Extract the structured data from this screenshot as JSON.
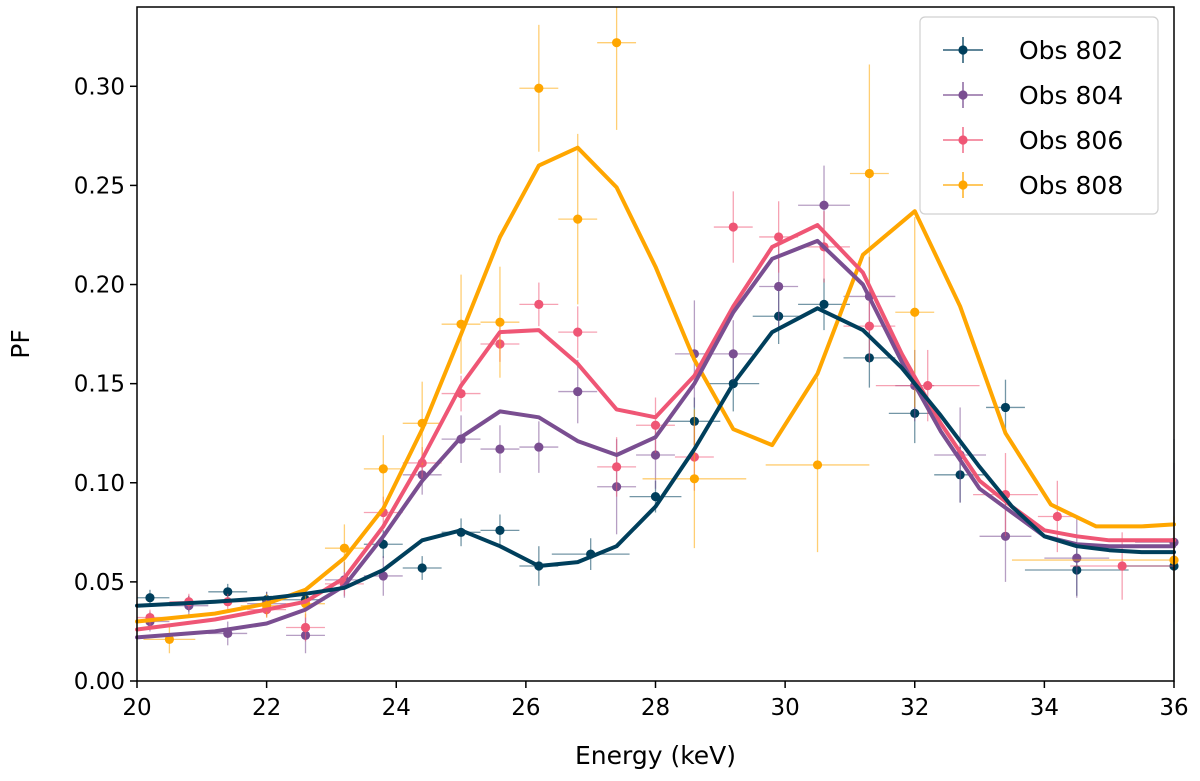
{
  "chart_data": {
    "type": "line",
    "title": "",
    "xlabel": "Energy (keV)",
    "ylabel": "PF",
    "xlim": [
      20,
      36
    ],
    "ylim": [
      0,
      0.34
    ],
    "xticks": [
      20,
      22,
      24,
      26,
      28,
      30,
      32,
      34,
      36
    ],
    "xtick_labels": [
      "20",
      "22",
      "24",
      "26",
      "28",
      "30",
      "32",
      "34",
      "36"
    ],
    "yticks": [
      0.0,
      0.05,
      0.1,
      0.15,
      0.2,
      0.25,
      0.3
    ],
    "ytick_labels": [
      "0.00",
      "0.05",
      "0.10",
      "0.15",
      "0.20",
      "0.25",
      "0.30"
    ],
    "grid": false,
    "legend_position": "top-right",
    "series": [
      {
        "name": "Obs 802",
        "color": "#003f5c",
        "model_x": [
          20,
          21.2,
          22.1,
          22.6,
          23.2,
          23.8,
          24.4,
          25.0,
          25.6,
          26.2,
          26.8,
          27.4,
          28.0,
          28.6,
          29.2,
          29.8,
          30.5,
          31.2,
          31.8,
          32.4,
          33.0,
          33.5,
          34.0,
          34.5,
          35.0,
          35.5,
          36
        ],
        "model_y": [
          0.038,
          0.04,
          0.042,
          0.044,
          0.047,
          0.056,
          0.071,
          0.076,
          0.068,
          0.058,
          0.06,
          0.068,
          0.088,
          0.117,
          0.15,
          0.176,
          0.188,
          0.177,
          0.158,
          0.134,
          0.108,
          0.088,
          0.073,
          0.068,
          0.066,
          0.065,
          0.065
        ],
        "points": [
          {
            "x": 20.2,
            "y": 0.042,
            "xerr": 0.3,
            "yerr": 0.004
          },
          {
            "x": 20.8,
            "y": 0.039,
            "xerr": 0.3,
            "yerr": 0.004
          },
          {
            "x": 21.4,
            "y": 0.045,
            "xerr": 0.3,
            "yerr": 0.004
          },
          {
            "x": 22.0,
            "y": 0.041,
            "xerr": 0.3,
            "yerr": 0.004
          },
          {
            "x": 22.6,
            "y": 0.041,
            "xerr": 0.3,
            "yerr": 0.005
          },
          {
            "x": 23.8,
            "y": 0.069,
            "xerr": 0.3,
            "yerr": 0.007
          },
          {
            "x": 24.4,
            "y": 0.057,
            "xerr": 0.3,
            "yerr": 0.006
          },
          {
            "x": 25.0,
            "y": 0.075,
            "xerr": 0.3,
            "yerr": 0.007
          },
          {
            "x": 25.6,
            "y": 0.076,
            "xerr": 0.3,
            "yerr": 0.008
          },
          {
            "x": 26.2,
            "y": 0.058,
            "xerr": 0.3,
            "yerr": 0.01
          },
          {
            "x": 27.0,
            "y": 0.064,
            "xerr": 0.6,
            "yerr": 0.008
          },
          {
            "x": 28.0,
            "y": 0.093,
            "xerr": 0.4,
            "yerr": 0.008
          },
          {
            "x": 28.6,
            "y": 0.131,
            "xerr": 0.4,
            "yerr": 0.012
          },
          {
            "x": 29.2,
            "y": 0.15,
            "xerr": 0.4,
            "yerr": 0.014
          },
          {
            "x": 29.9,
            "y": 0.184,
            "xerr": 0.4,
            "yerr": 0.014
          },
          {
            "x": 30.6,
            "y": 0.19,
            "xerr": 0.4,
            "yerr": 0.013
          },
          {
            "x": 31.3,
            "y": 0.163,
            "xerr": 0.4,
            "yerr": 0.015
          },
          {
            "x": 32.0,
            "y": 0.135,
            "xerr": 0.4,
            "yerr": 0.015
          },
          {
            "x": 32.7,
            "y": 0.104,
            "xerr": 0.4,
            "yerr": 0.014
          },
          {
            "x": 33.4,
            "y": 0.138,
            "xerr": 0.3,
            "yerr": 0.014
          },
          {
            "x": 34.5,
            "y": 0.056,
            "xerr": 0.8,
            "yerr": 0.013
          },
          {
            "x": 36.0,
            "y": 0.058,
            "xerr": 0.8,
            "yerr": 0.064
          }
        ]
      },
      {
        "name": "Obs 804",
        "color": "#7a4e91",
        "model_x": [
          20,
          21.2,
          22.0,
          22.6,
          23.2,
          23.8,
          24.4,
          25.0,
          25.6,
          26.2,
          26.8,
          27.4,
          28.0,
          28.6,
          29.2,
          29.8,
          30.5,
          31.2,
          31.8,
          32.4,
          33.0,
          33.5,
          34.0,
          34.5,
          35.0,
          35.5,
          36
        ],
        "model_y": [
          0.022,
          0.025,
          0.029,
          0.036,
          0.048,
          0.073,
          0.101,
          0.123,
          0.136,
          0.133,
          0.121,
          0.114,
          0.123,
          0.15,
          0.186,
          0.213,
          0.222,
          0.2,
          0.161,
          0.126,
          0.097,
          0.085,
          0.073,
          0.069,
          0.068,
          0.068,
          0.068
        ],
        "points": [
          {
            "x": 20.2,
            "y": 0.03,
            "xerr": 0.3,
            "yerr": 0.005
          },
          {
            "x": 20.8,
            "y": 0.038,
            "xerr": 0.3,
            "yerr": 0.005
          },
          {
            "x": 21.4,
            "y": 0.024,
            "xerr": 0.3,
            "yerr": 0.006
          },
          {
            "x": 22.0,
            "y": 0.039,
            "xerr": 0.3,
            "yerr": 0.006
          },
          {
            "x": 22.6,
            "y": 0.023,
            "xerr": 0.3,
            "yerr": 0.009
          },
          {
            "x": 23.2,
            "y": 0.051,
            "xerr": 0.3,
            "yerr": 0.009
          },
          {
            "x": 23.8,
            "y": 0.053,
            "xerr": 0.3,
            "yerr": 0.01
          },
          {
            "x": 24.4,
            "y": 0.104,
            "xerr": 0.3,
            "yerr": 0.01
          },
          {
            "x": 25.0,
            "y": 0.122,
            "xerr": 0.3,
            "yerr": 0.012
          },
          {
            "x": 25.6,
            "y": 0.117,
            "xerr": 0.3,
            "yerr": 0.012
          },
          {
            "x": 26.2,
            "y": 0.118,
            "xerr": 0.3,
            "yerr": 0.013
          },
          {
            "x": 26.8,
            "y": 0.146,
            "xerr": 0.3,
            "yerr": 0.016
          },
          {
            "x": 27.4,
            "y": 0.098,
            "xerr": 0.3,
            "yerr": 0.024
          },
          {
            "x": 28.0,
            "y": 0.114,
            "xerr": 0.3,
            "yerr": 0.017
          },
          {
            "x": 28.6,
            "y": 0.165,
            "xerr": 0.3,
            "yerr": 0.027
          },
          {
            "x": 29.2,
            "y": 0.165,
            "xerr": 0.3,
            "yerr": 0.017
          },
          {
            "x": 29.9,
            "y": 0.199,
            "xerr": 0.3,
            "yerr": 0.022
          },
          {
            "x": 30.6,
            "y": 0.24,
            "xerr": 0.4,
            "yerr": 0.02
          },
          {
            "x": 31.3,
            "y": 0.194,
            "xerr": 0.4,
            "yerr": 0.02
          },
          {
            "x": 32.0,
            "y": 0.149,
            "xerr": 0.3,
            "yerr": 0.018
          },
          {
            "x": 32.7,
            "y": 0.114,
            "xerr": 0.4,
            "yerr": 0.024
          },
          {
            "x": 33.4,
            "y": 0.073,
            "xerr": 0.4,
            "yerr": 0.023
          },
          {
            "x": 34.5,
            "y": 0.062,
            "xerr": 0.5,
            "yerr": 0.02
          },
          {
            "x": 36.0,
            "y": 0.07,
            "xerr": 0.6,
            "yerr": 0.04
          }
        ]
      },
      {
        "name": "Obs 806",
        "color": "#ef5675",
        "model_x": [
          20,
          21.2,
          22.0,
          22.6,
          23.2,
          23.8,
          24.4,
          25.0,
          25.6,
          26.2,
          26.8,
          27.4,
          28.0,
          28.6,
          29.2,
          29.8,
          30.5,
          31.2,
          31.8,
          32.4,
          33.0,
          33.5,
          34.0,
          34.5,
          35.0,
          35.5,
          36
        ],
        "model_y": [
          0.026,
          0.031,
          0.036,
          0.04,
          0.052,
          0.078,
          0.112,
          0.149,
          0.176,
          0.177,
          0.16,
          0.137,
          0.133,
          0.154,
          0.189,
          0.219,
          0.23,
          0.206,
          0.165,
          0.13,
          0.101,
          0.088,
          0.076,
          0.073,
          0.071,
          0.071,
          0.071
        ],
        "points": [
          {
            "x": 20.2,
            "y": 0.032,
            "xerr": 0.3,
            "yerr": 0.004
          },
          {
            "x": 20.8,
            "y": 0.04,
            "xerr": 0.3,
            "yerr": 0.004
          },
          {
            "x": 21.4,
            "y": 0.04,
            "xerr": 0.3,
            "yerr": 0.004
          },
          {
            "x": 22.0,
            "y": 0.036,
            "xerr": 0.3,
            "yerr": 0.004
          },
          {
            "x": 22.6,
            "y": 0.027,
            "xerr": 0.3,
            "yerr": 0.007
          },
          {
            "x": 23.2,
            "y": 0.049,
            "xerr": 0.3,
            "yerr": 0.006
          },
          {
            "x": 23.8,
            "y": 0.085,
            "xerr": 0.3,
            "yerr": 0.008
          },
          {
            "x": 24.4,
            "y": 0.11,
            "xerr": 0.3,
            "yerr": 0.008
          },
          {
            "x": 25.0,
            "y": 0.145,
            "xerr": 0.3,
            "yerr": 0.009
          },
          {
            "x": 25.6,
            "y": 0.17,
            "xerr": 0.3,
            "yerr": 0.009
          },
          {
            "x": 26.2,
            "y": 0.19,
            "xerr": 0.3,
            "yerr": 0.011
          },
          {
            "x": 26.8,
            "y": 0.176,
            "xerr": 0.3,
            "yerr": 0.013
          },
          {
            "x": 27.4,
            "y": 0.108,
            "xerr": 0.3,
            "yerr": 0.015
          },
          {
            "x": 28.0,
            "y": 0.129,
            "xerr": 0.3,
            "yerr": 0.014
          },
          {
            "x": 28.6,
            "y": 0.113,
            "xerr": 0.3,
            "yerr": 0.017
          },
          {
            "x": 29.2,
            "y": 0.229,
            "xerr": 0.3,
            "yerr": 0.018
          },
          {
            "x": 29.9,
            "y": 0.224,
            "xerr": 0.3,
            "yerr": 0.018
          },
          {
            "x": 30.6,
            "y": 0.219,
            "xerr": 0.4,
            "yerr": 0.018
          },
          {
            "x": 31.3,
            "y": 0.179,
            "xerr": 0.4,
            "yerr": 0.018
          },
          {
            "x": 32.2,
            "y": 0.149,
            "xerr": 0.8,
            "yerr": 0.018
          },
          {
            "x": 33.4,
            "y": 0.094,
            "xerr": 0.5,
            "yerr": 0.021
          },
          {
            "x": 34.2,
            "y": 0.083,
            "xerr": 0.3,
            "yerr": 0.018
          },
          {
            "x": 35.2,
            "y": 0.058,
            "xerr": 0.8,
            "yerr": 0.017
          }
        ]
      },
      {
        "name": "Obs 808",
        "color": "#ffa600",
        "model_x": [
          20,
          21.2,
          22.0,
          22.6,
          23.2,
          23.8,
          24.4,
          25.0,
          25.6,
          26.2,
          26.8,
          27.4,
          28.0,
          28.6,
          29.2,
          29.8,
          30.5,
          31.2,
          32.0,
          32.7,
          33.4,
          34.1,
          34.8,
          35.5,
          36
        ],
        "model_y": [
          0.03,
          0.034,
          0.039,
          0.046,
          0.062,
          0.087,
          0.127,
          0.175,
          0.224,
          0.26,
          0.269,
          0.249,
          0.209,
          0.162,
          0.127,
          0.119,
          0.155,
          0.215,
          0.237,
          0.189,
          0.125,
          0.089,
          0.078,
          0.078,
          0.079
        ],
        "points": [
          {
            "x": 20.5,
            "y": 0.021,
            "xerr": 0.4,
            "yerr": 0.007
          },
          {
            "x": 22.0,
            "y": 0.038,
            "xerr": 0.4,
            "yerr": 0.006
          },
          {
            "x": 22.6,
            "y": 0.039,
            "xerr": 0.3,
            "yerr": 0.007
          },
          {
            "x": 23.2,
            "y": 0.067,
            "xerr": 0.3,
            "yerr": 0.012
          },
          {
            "x": 23.8,
            "y": 0.107,
            "xerr": 0.3,
            "yerr": 0.017
          },
          {
            "x": 24.4,
            "y": 0.13,
            "xerr": 0.3,
            "yerr": 0.021
          },
          {
            "x": 25.0,
            "y": 0.18,
            "xerr": 0.3,
            "yerr": 0.025
          },
          {
            "x": 25.6,
            "y": 0.181,
            "xerr": 0.3,
            "yerr": 0.028
          },
          {
            "x": 26.2,
            "y": 0.299,
            "xerr": 0.3,
            "yerr": 0.032
          },
          {
            "x": 26.8,
            "y": 0.233,
            "xerr": 0.3,
            "yerr": 0.043
          },
          {
            "x": 27.4,
            "y": 0.322,
            "xerr": 0.3,
            "yerr": 0.044
          },
          {
            "x": 28.6,
            "y": 0.102,
            "xerr": 0.8,
            "yerr": 0.035
          },
          {
            "x": 30.5,
            "y": 0.109,
            "xerr": 0.8,
            "yerr": 0.044
          },
          {
            "x": 31.3,
            "y": 0.256,
            "xerr": 0.3,
            "yerr": 0.055
          },
          {
            "x": 32.0,
            "y": 0.186,
            "xerr": 0.3,
            "yerr": 0.048
          },
          {
            "x": 36.0,
            "y": 0.061,
            "xerr": 2.5,
            "yerr": 0.022
          }
        ]
      }
    ]
  }
}
